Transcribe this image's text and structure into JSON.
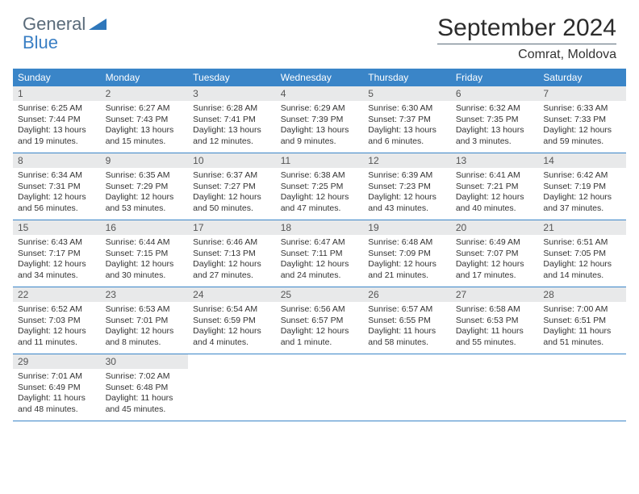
{
  "logo": {
    "line1": "General",
    "line2": "Blue",
    "shape_color": "#2e77bb"
  },
  "title": "September 2024",
  "location": "Comrat, Moldova",
  "colors": {
    "header_bar": "#3a85c8",
    "daynum_bg": "#e8e9ea",
    "week_border": "#3a85c8",
    "text": "#333333"
  },
  "weekdays": [
    "Sunday",
    "Monday",
    "Tuesday",
    "Wednesday",
    "Thursday",
    "Friday",
    "Saturday"
  ],
  "weeks": [
    [
      {
        "num": "1",
        "sunrise": "Sunrise: 6:25 AM",
        "sunset": "Sunset: 7:44 PM",
        "daylight": "Daylight: 13 hours and 19 minutes."
      },
      {
        "num": "2",
        "sunrise": "Sunrise: 6:27 AM",
        "sunset": "Sunset: 7:43 PM",
        "daylight": "Daylight: 13 hours and 15 minutes."
      },
      {
        "num": "3",
        "sunrise": "Sunrise: 6:28 AM",
        "sunset": "Sunset: 7:41 PM",
        "daylight": "Daylight: 13 hours and 12 minutes."
      },
      {
        "num": "4",
        "sunrise": "Sunrise: 6:29 AM",
        "sunset": "Sunset: 7:39 PM",
        "daylight": "Daylight: 13 hours and 9 minutes."
      },
      {
        "num": "5",
        "sunrise": "Sunrise: 6:30 AM",
        "sunset": "Sunset: 7:37 PM",
        "daylight": "Daylight: 13 hours and 6 minutes."
      },
      {
        "num": "6",
        "sunrise": "Sunrise: 6:32 AM",
        "sunset": "Sunset: 7:35 PM",
        "daylight": "Daylight: 13 hours and 3 minutes."
      },
      {
        "num": "7",
        "sunrise": "Sunrise: 6:33 AM",
        "sunset": "Sunset: 7:33 PM",
        "daylight": "Daylight: 12 hours and 59 minutes."
      }
    ],
    [
      {
        "num": "8",
        "sunrise": "Sunrise: 6:34 AM",
        "sunset": "Sunset: 7:31 PM",
        "daylight": "Daylight: 12 hours and 56 minutes."
      },
      {
        "num": "9",
        "sunrise": "Sunrise: 6:35 AM",
        "sunset": "Sunset: 7:29 PM",
        "daylight": "Daylight: 12 hours and 53 minutes."
      },
      {
        "num": "10",
        "sunrise": "Sunrise: 6:37 AM",
        "sunset": "Sunset: 7:27 PM",
        "daylight": "Daylight: 12 hours and 50 minutes."
      },
      {
        "num": "11",
        "sunrise": "Sunrise: 6:38 AM",
        "sunset": "Sunset: 7:25 PM",
        "daylight": "Daylight: 12 hours and 47 minutes."
      },
      {
        "num": "12",
        "sunrise": "Sunrise: 6:39 AM",
        "sunset": "Sunset: 7:23 PM",
        "daylight": "Daylight: 12 hours and 43 minutes."
      },
      {
        "num": "13",
        "sunrise": "Sunrise: 6:41 AM",
        "sunset": "Sunset: 7:21 PM",
        "daylight": "Daylight: 12 hours and 40 minutes."
      },
      {
        "num": "14",
        "sunrise": "Sunrise: 6:42 AM",
        "sunset": "Sunset: 7:19 PM",
        "daylight": "Daylight: 12 hours and 37 minutes."
      }
    ],
    [
      {
        "num": "15",
        "sunrise": "Sunrise: 6:43 AM",
        "sunset": "Sunset: 7:17 PM",
        "daylight": "Daylight: 12 hours and 34 minutes."
      },
      {
        "num": "16",
        "sunrise": "Sunrise: 6:44 AM",
        "sunset": "Sunset: 7:15 PM",
        "daylight": "Daylight: 12 hours and 30 minutes."
      },
      {
        "num": "17",
        "sunrise": "Sunrise: 6:46 AM",
        "sunset": "Sunset: 7:13 PM",
        "daylight": "Daylight: 12 hours and 27 minutes."
      },
      {
        "num": "18",
        "sunrise": "Sunrise: 6:47 AM",
        "sunset": "Sunset: 7:11 PM",
        "daylight": "Daylight: 12 hours and 24 minutes."
      },
      {
        "num": "19",
        "sunrise": "Sunrise: 6:48 AM",
        "sunset": "Sunset: 7:09 PM",
        "daylight": "Daylight: 12 hours and 21 minutes."
      },
      {
        "num": "20",
        "sunrise": "Sunrise: 6:49 AM",
        "sunset": "Sunset: 7:07 PM",
        "daylight": "Daylight: 12 hours and 17 minutes."
      },
      {
        "num": "21",
        "sunrise": "Sunrise: 6:51 AM",
        "sunset": "Sunset: 7:05 PM",
        "daylight": "Daylight: 12 hours and 14 minutes."
      }
    ],
    [
      {
        "num": "22",
        "sunrise": "Sunrise: 6:52 AM",
        "sunset": "Sunset: 7:03 PM",
        "daylight": "Daylight: 12 hours and 11 minutes."
      },
      {
        "num": "23",
        "sunrise": "Sunrise: 6:53 AM",
        "sunset": "Sunset: 7:01 PM",
        "daylight": "Daylight: 12 hours and 8 minutes."
      },
      {
        "num": "24",
        "sunrise": "Sunrise: 6:54 AM",
        "sunset": "Sunset: 6:59 PM",
        "daylight": "Daylight: 12 hours and 4 minutes."
      },
      {
        "num": "25",
        "sunrise": "Sunrise: 6:56 AM",
        "sunset": "Sunset: 6:57 PM",
        "daylight": "Daylight: 12 hours and 1 minute."
      },
      {
        "num": "26",
        "sunrise": "Sunrise: 6:57 AM",
        "sunset": "Sunset: 6:55 PM",
        "daylight": "Daylight: 11 hours and 58 minutes."
      },
      {
        "num": "27",
        "sunrise": "Sunrise: 6:58 AM",
        "sunset": "Sunset: 6:53 PM",
        "daylight": "Daylight: 11 hours and 55 minutes."
      },
      {
        "num": "28",
        "sunrise": "Sunrise: 7:00 AM",
        "sunset": "Sunset: 6:51 PM",
        "daylight": "Daylight: 11 hours and 51 minutes."
      }
    ],
    [
      {
        "num": "29",
        "sunrise": "Sunrise: 7:01 AM",
        "sunset": "Sunset: 6:49 PM",
        "daylight": "Daylight: 11 hours and 48 minutes."
      },
      {
        "num": "30",
        "sunrise": "Sunrise: 7:02 AM",
        "sunset": "Sunset: 6:48 PM",
        "daylight": "Daylight: 11 hours and 45 minutes."
      },
      {
        "empty": true
      },
      {
        "empty": true
      },
      {
        "empty": true
      },
      {
        "empty": true
      },
      {
        "empty": true
      }
    ]
  ]
}
